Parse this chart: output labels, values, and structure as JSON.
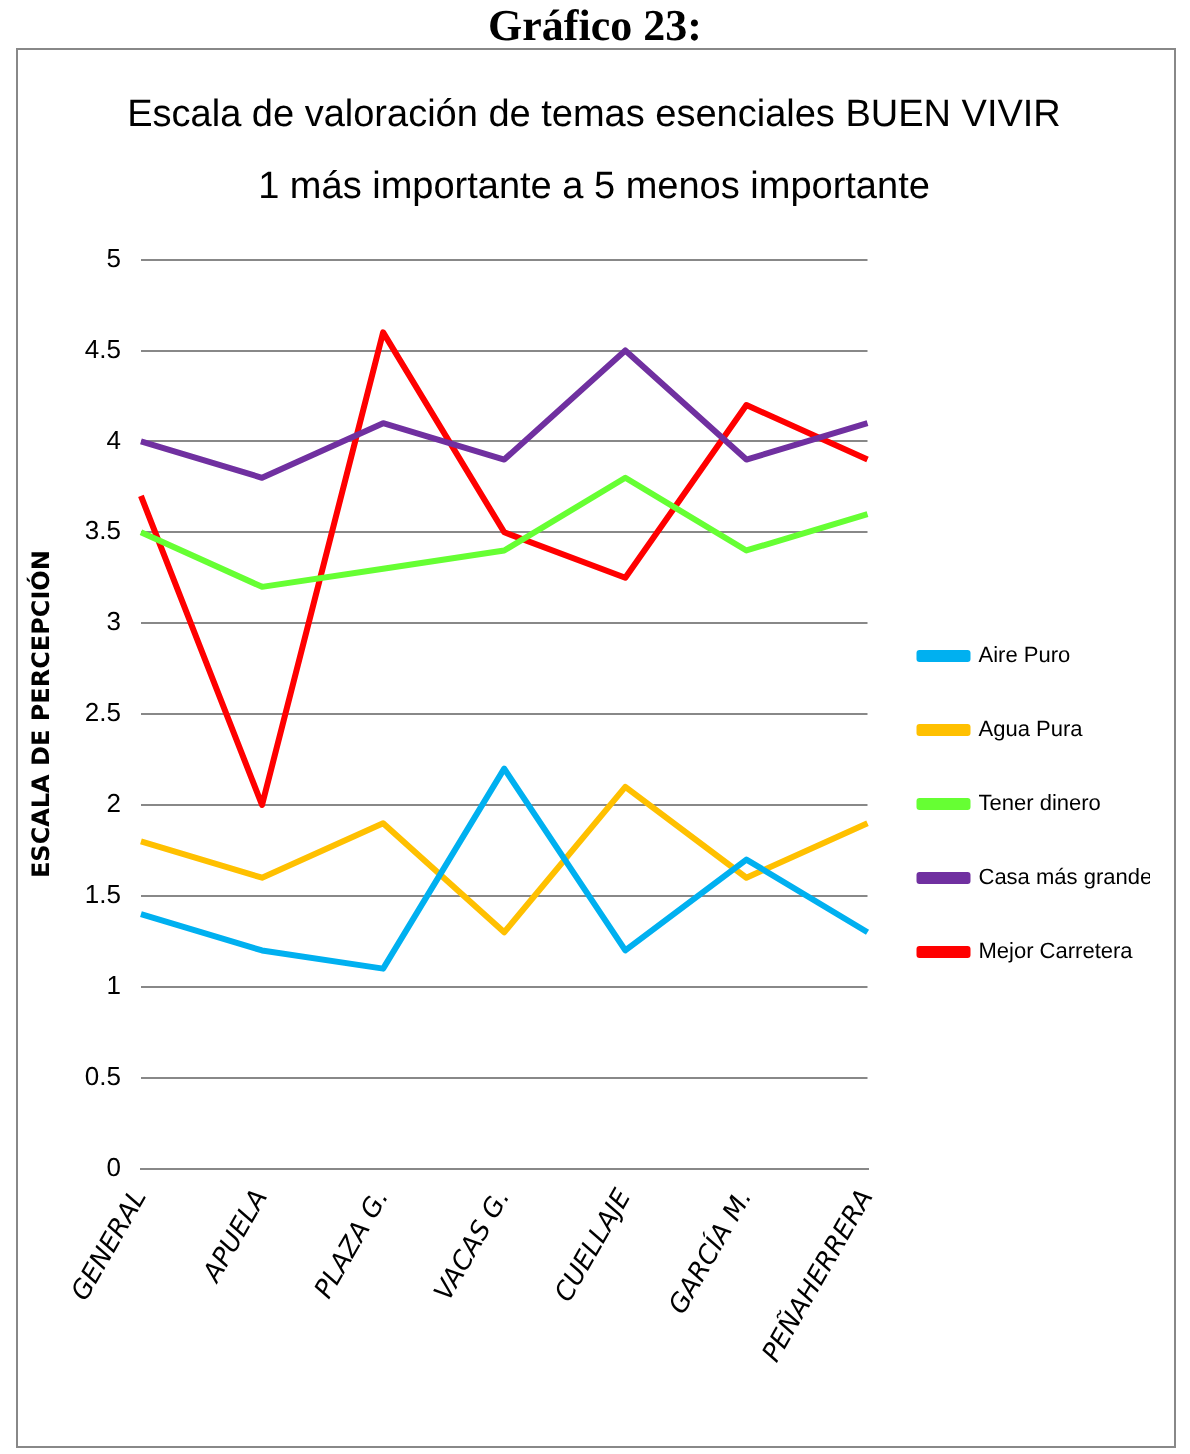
{
  "chart_data": {
    "type": "line",
    "title": "Escala de valoración de temas esenciales BUEN VIVIR",
    "subtitle": "1 más importante a 5 menos importante",
    "ylabel": "ESCALA DE PERCEPCIÓN",
    "annotations": [
      "Gráfico 23:"
    ],
    "categories": [
      "GENERAL",
      "APUELA",
      "PLAZA G.",
      "VACAS G.",
      "CUELLAJE",
      "GARCÍA M.",
      "PEÑAHERRERA"
    ],
    "series": [
      {
        "name": "Aire Puro",
        "color": "#00b0f0",
        "values": [
          1.4,
          1.2,
          1.1,
          2.2,
          1.2,
          1.7,
          1.3
        ]
      },
      {
        "name": "Agua Pura",
        "color": "#ffc000",
        "values": [
          1.8,
          1.6,
          1.9,
          1.3,
          2.1,
          1.6,
          1.9
        ]
      },
      {
        "name": "Tener dinero",
        "color": "#66ff33",
        "values": [
          3.5,
          3.2,
          3.3,
          3.4,
          3.8,
          3.4,
          3.6
        ]
      },
      {
        "name": "Casa más grande",
        "color": "#7030a0",
        "values": [
          4.0,
          3.8,
          4.1,
          3.9,
          4.5,
          3.9,
          4.1
        ]
      },
      {
        "name": "Mejor Carretera",
        "color": "#ff0000",
        "values": [
          3.7,
          2.0,
          4.6,
          3.5,
          3.25,
          4.2,
          3.9
        ]
      }
    ],
    "ylim": [
      0,
      5
    ],
    "yticks": [
      0,
      0.5,
      1,
      1.5,
      2,
      2.5,
      3,
      3.5,
      4,
      4.5,
      5
    ],
    "grid": "y",
    "legend": "right",
    "marker": "none",
    "line_style": "solid"
  }
}
